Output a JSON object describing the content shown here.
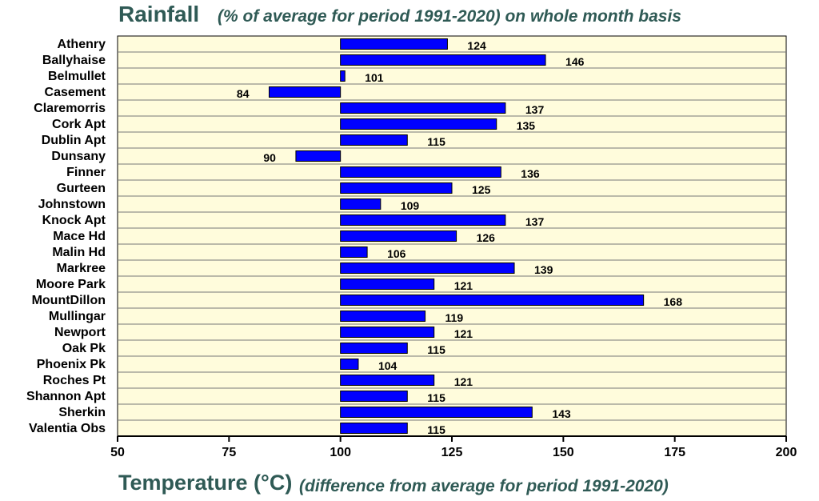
{
  "title": {
    "main": "Rainfall",
    "sub": "(% of average for period 1991-2020) on whole month basis"
  },
  "footer": {
    "main": "Temperature (°C)",
    "sub": "(difference from average for period 1991-2020)"
  },
  "colors": {
    "bar": "#0000ff",
    "background": "#fffcdc",
    "title": "#2f5a55"
  },
  "chart_data": {
    "type": "bar",
    "orientation": "horizontal",
    "baseline": 100,
    "categories": [
      "Athenry",
      "Ballyhaise",
      "Belmullet",
      "Casement",
      "Claremorris",
      "Cork Apt",
      "Dublin Apt",
      "Dunsany",
      "Finner",
      "Gurteen",
      "Johnstown",
      "Knock Apt",
      "Mace Hd",
      "Malin Hd",
      "Markree",
      "Moore Park",
      "MountDillon",
      "Mullingar",
      "Newport",
      "Oak Pk",
      "Phoenix Pk",
      "Roches Pt",
      "Shannon Apt",
      "Sherkin",
      "Valentia Obs"
    ],
    "values": [
      124,
      146,
      101,
      84,
      137,
      135,
      115,
      90,
      136,
      125,
      109,
      137,
      126,
      106,
      139,
      121,
      168,
      119,
      121,
      115,
      104,
      121,
      115,
      143,
      115
    ],
    "data_labels": [
      "124",
      "146",
      "101",
      "84",
      "137",
      "135",
      "115",
      "90",
      "136",
      "125",
      "109",
      "137",
      "126",
      "106",
      "139",
      "121",
      "168",
      "119",
      "121",
      "115",
      "104",
      "121",
      "115",
      "143",
      "115"
    ],
    "xlim": [
      50,
      200
    ],
    "xticks": [
      "50",
      "75",
      "100",
      "125",
      "150",
      "175",
      "200"
    ],
    "grid": "horizontal row lines"
  }
}
